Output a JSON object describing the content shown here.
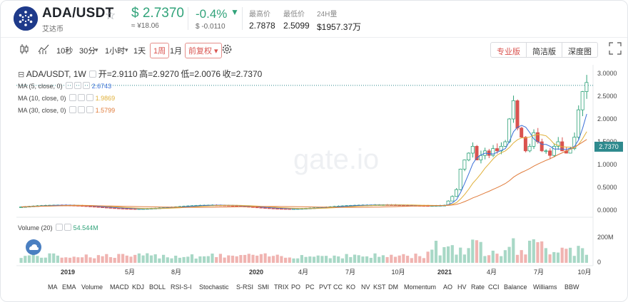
{
  "header": {
    "pair": "ADA/USDT",
    "pair_sub": "艾达币",
    "price": "$ 2.7370",
    "price_sub": "≈ ¥18.06",
    "change": "-0.4%",
    "change_sub": "$ -0.0110",
    "high_label": "最高价",
    "high_value": "2.7878",
    "low_label": "最低价",
    "low_value": "2.5099",
    "vol_label": "24H量",
    "vol_value": "$1957.37万"
  },
  "toolbar": {
    "intervals": [
      "10秒",
      "30分",
      "1小时",
      "1天",
      "1周",
      "1月"
    ],
    "active_interval": "1周",
    "adjust": "前复权",
    "versions": [
      "专业版",
      "简洁版",
      "深度图"
    ],
    "active_version": "专业版"
  },
  "legend": {
    "title": "ADA/USDT, 1W",
    "open": "开=2.9110",
    "high": "高=2.9270",
    "low": "低=2.0076",
    "close": "收=2.7370",
    "ma5_label": "MA (5, close, 0)",
    "ma5_value": "2.6743",
    "ma10_label": "MA (10, close, 0)",
    "ma10_value": "1.9869",
    "ma30_label": "MA (30, close, 0)",
    "ma30_value": "1.5799",
    "volume_label": "Volume (20)",
    "volume_value": "54.544M"
  },
  "current_price_tag": "2.7370",
  "watermark": "gate.io",
  "indicators": [
    "MA",
    "EMA",
    "Volume",
    "MACD",
    "KDJ",
    "BOLL",
    "RSI-S-I",
    "Stochastic",
    "S-RSI",
    "SMI",
    "TRIX",
    "PO",
    "PC",
    "PVT",
    "CC",
    "KO",
    "NV",
    "KST",
    "DM",
    "Momentum",
    "AO",
    "HV",
    "Rate",
    "CCI",
    "Balance",
    "Williams",
    "BBW"
  ],
  "colors": {
    "up": "#31a37a",
    "down": "#d9534f",
    "ma5": "#3a6fd8",
    "ma10": "#e0b03a",
    "ma30": "#e07b3a",
    "accent": "#d9534f"
  },
  "chart_data": {
    "type": "candlestick",
    "price_axis": {
      "ticks": [
        "3.0000",
        "2.5000",
        "2.0000",
        "1.5000",
        "1.0000",
        "0.5000",
        "0.0000"
      ],
      "range": [
        0,
        3.0
      ]
    },
    "volume_axis": {
      "ticks": [
        "200M",
        "0"
      ]
    },
    "x_ticks": [
      "2019",
      "5月",
      "8月",
      "2020",
      "4月",
      "7月",
      "10月",
      "2021",
      "4月",
      "7月",
      "10月"
    ],
    "series": [
      {
        "name": "ADA/USDT 1W",
        "shape": "flat near 0.05–0.1 through 2019–2020, rising sharply in 2021 to ~2.5 in May, dipping to ~1.2 in July, reaching ~2.9 in early September"
      },
      {
        "name": "MA (5, close, 0)",
        "last": 2.6743
      },
      {
        "name": "MA (10, close, 0)",
        "last": 1.9869
      },
      {
        "name": "MA (30, close, 0)",
        "last": 1.5799
      }
    ],
    "latest": {
      "open": 2.911,
      "high": 2.927,
      "low": 2.0076,
      "close": 2.737,
      "volume_label": "54.544M"
    }
  }
}
